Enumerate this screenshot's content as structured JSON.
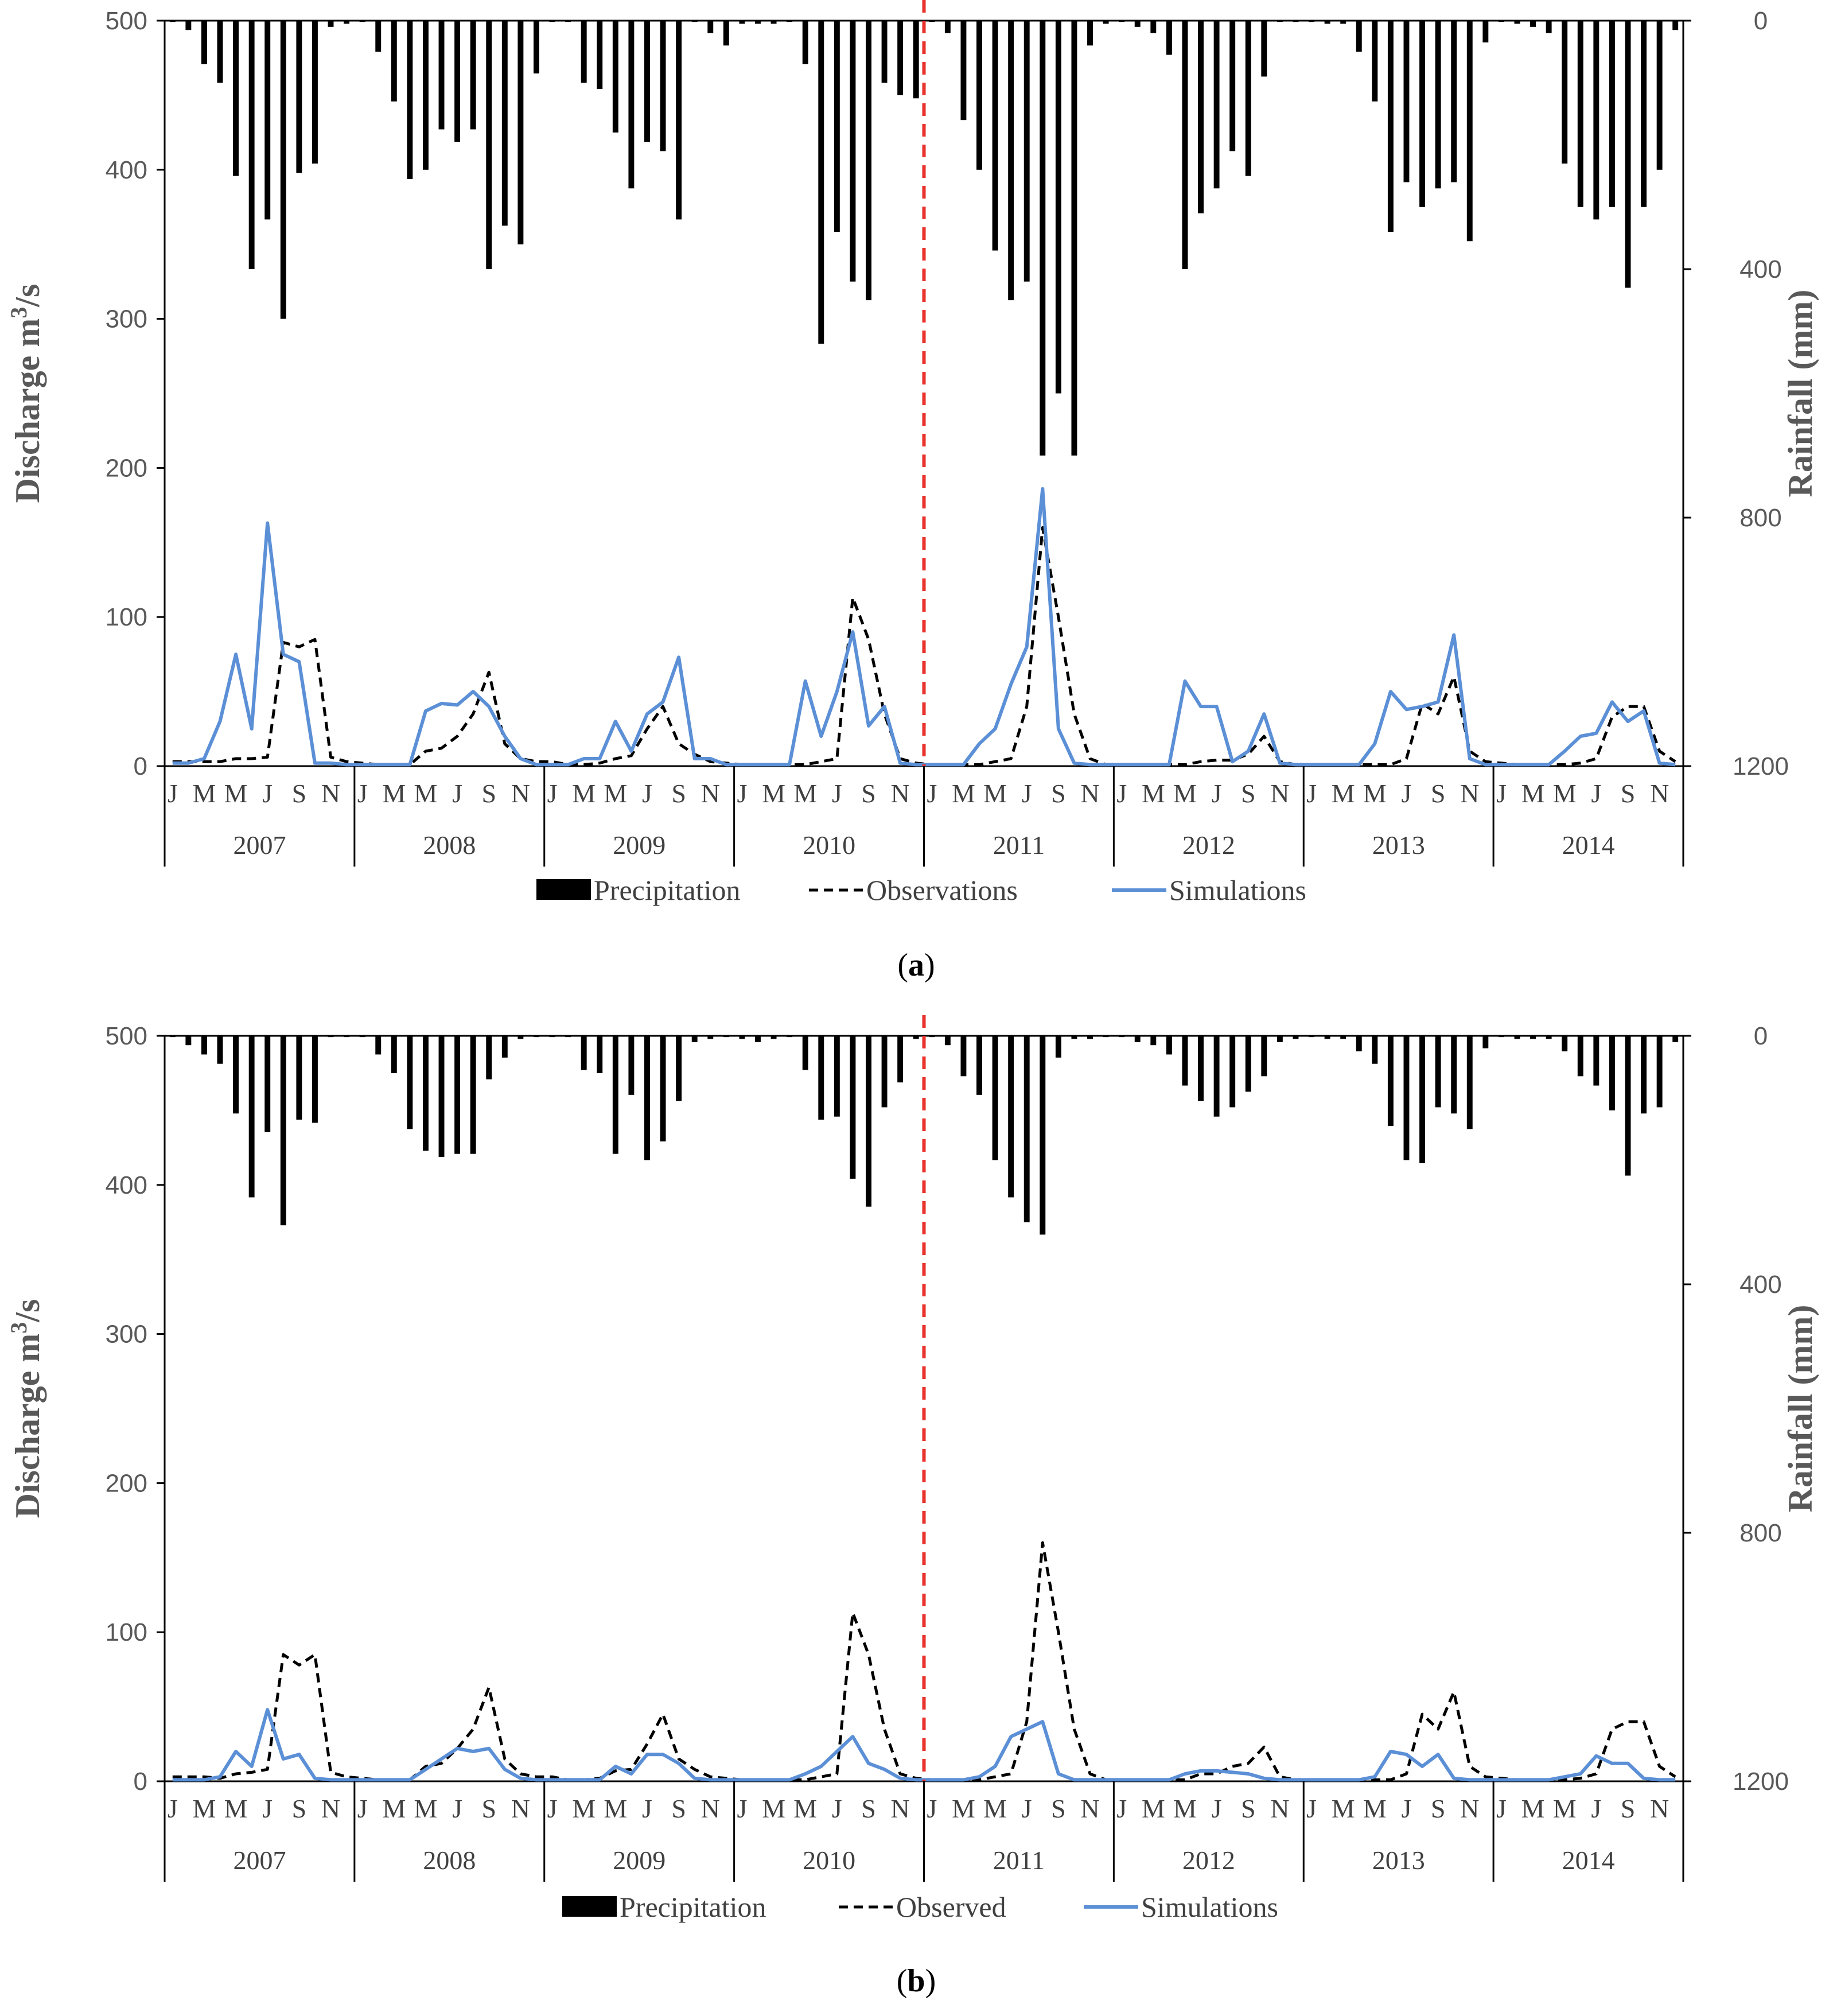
{
  "colors": {
    "precipitation": "#000000",
    "observations": "#000000",
    "simulations": "#5b8fd6",
    "divider": "#e8322b",
    "axis": "#000000",
    "tick_text": "#595959"
  },
  "chart_data": [
    {
      "id": "a",
      "type": "bar+line",
      "caption": "a",
      "ylabel_left": "Discharge m³/s",
      "ylabel_right": "Rainfall (mm)",
      "ylim_left": [
        0,
        500
      ],
      "ylim_right_inverted": [
        0,
        1200
      ],
      "left_ticks": [
        "0",
        "100",
        "200",
        "300",
        "400",
        "500"
      ],
      "right_ticks": [
        "0",
        "400",
        "800",
        "1200"
      ],
      "years": [
        "2007",
        "2008",
        "2009",
        "2010",
        "2011",
        "2012",
        "2013",
        "2014"
      ],
      "month_tick_labels": [
        "J",
        "M",
        "M",
        "J",
        "S",
        "N"
      ],
      "calibration_validation_split_after_year": "2010",
      "legend": [
        "Precipitation",
        "Observations",
        "Simulations"
      ],
      "series": [
        {
          "name": "Precipitation",
          "kind": "bar",
          "axis": "right",
          "unit": "mm",
          "values": [
            2,
            15,
            70,
            100,
            250,
            400,
            320,
            480,
            245,
            230,
            10,
            5,
            2,
            50,
            130,
            255,
            240,
            175,
            195,
            175,
            400,
            330,
            360,
            85,
            2,
            2,
            100,
            110,
            180,
            270,
            195,
            210,
            320,
            2,
            20,
            40,
            5,
            5,
            5,
            2,
            70,
            520,
            340,
            420,
            450,
            100,
            120,
            125,
            2,
            20,
            160,
            240,
            370,
            450,
            420,
            700,
            600,
            700,
            40,
            5,
            2,
            10,
            20,
            55,
            400,
            310,
            270,
            210,
            250,
            90,
            2,
            2,
            2,
            5,
            5,
            50,
            130,
            340,
            260,
            300,
            270,
            260,
            355,
            35,
            2,
            5,
            10,
            20,
            230,
            300,
            320,
            300,
            430,
            300,
            240,
            15
          ]
        },
        {
          "name": "Observations",
          "kind": "line",
          "axis": "left",
          "unit": "m3/s",
          "dash": true,
          "values": [
            3,
            3,
            3,
            3,
            5,
            5,
            6,
            83,
            80,
            85,
            6,
            3,
            2,
            1,
            1,
            1,
            10,
            12,
            20,
            35,
            63,
            15,
            5,
            3,
            3,
            1,
            1,
            2,
            5,
            7,
            25,
            40,
            15,
            8,
            3,
            2,
            1,
            1,
            1,
            1,
            1,
            3,
            5,
            113,
            85,
            35,
            5,
            2,
            1,
            1,
            1,
            1,
            3,
            5,
            40,
            160,
            100,
            35,
            5,
            1,
            1,
            1,
            1,
            1,
            1,
            3,
            4,
            4,
            8,
            20,
            3,
            1,
            1,
            1,
            1,
            1,
            1,
            1,
            5,
            42,
            35,
            60,
            10,
            3,
            2,
            1,
            1,
            1,
            1,
            2,
            5,
            33,
            40,
            40,
            10,
            3
          ]
        },
        {
          "name": "Simulations",
          "kind": "line",
          "axis": "left",
          "unit": "m3/s",
          "dash": false,
          "values": [
            2,
            2,
            5,
            30,
            75,
            25,
            163,
            75,
            70,
            2,
            2,
            1,
            1,
            1,
            1,
            1,
            37,
            42,
            41,
            50,
            40,
            20,
            5,
            1,
            1,
            1,
            5,
            5,
            30,
            10,
            35,
            43,
            73,
            5,
            5,
            1,
            1,
            1,
            1,
            1,
            57,
            20,
            50,
            90,
            27,
            40,
            2,
            1,
            1,
            1,
            1,
            15,
            25,
            55,
            80,
            186,
            25,
            2,
            1,
            1,
            1,
            1,
            1,
            1,
            57,
            40,
            40,
            3,
            10,
            35,
            2,
            1,
            1,
            1,
            1,
            1,
            15,
            50,
            38,
            40,
            43,
            88,
            5,
            1,
            1,
            1,
            1,
            1,
            10,
            20,
            22,
            43,
            30,
            37,
            2,
            1
          ]
        }
      ]
    },
    {
      "id": "b",
      "type": "bar+line",
      "caption": "b",
      "ylabel_left": "Discharge m³/s",
      "ylabel_right": "Rainfall (mm)",
      "ylim_left": [
        0,
        500
      ],
      "ylim_right_inverted": [
        0,
        1200
      ],
      "left_ticks": [
        "0",
        "100",
        "200",
        "300",
        "400",
        "500"
      ],
      "right_ticks": [
        "0",
        "400",
        "800",
        "1200"
      ],
      "years": [
        "2007",
        "2008",
        "2009",
        "2010",
        "2011",
        "2012",
        "2013",
        "2014"
      ],
      "month_tick_labels": [
        "J",
        "M",
        "M",
        "J",
        "S",
        "N"
      ],
      "calibration_validation_split_after_year": "2010",
      "legend": [
        "Precipitation",
        "Observed",
        "Simulations"
      ],
      "series": [
        {
          "name": "Precipitation",
          "kind": "bar",
          "axis": "right",
          "unit": "mm",
          "values": [
            2,
            15,
            30,
            45,
            125,
            260,
            155,
            305,
            135,
            140,
            2,
            2,
            2,
            30,
            60,
            150,
            185,
            195,
            190,
            190,
            70,
            35,
            5,
            2,
            2,
            2,
            55,
            60,
            190,
            95,
            200,
            170,
            105,
            10,
            5,
            2,
            5,
            10,
            5,
            2,
            55,
            135,
            130,
            230,
            275,
            115,
            75,
            5,
            2,
            15,
            65,
            95,
            200,
            260,
            300,
            320,
            35,
            5,
            5,
            2,
            2,
            10,
            15,
            30,
            80,
            105,
            130,
            115,
            90,
            65,
            10,
            5,
            2,
            5,
            5,
            25,
            45,
            145,
            200,
            205,
            115,
            125,
            150,
            20,
            2,
            5,
            5,
            5,
            25,
            65,
            80,
            120,
            225,
            125,
            115,
            10
          ]
        },
        {
          "name": "Observed",
          "kind": "line",
          "axis": "left",
          "unit": "m3/s",
          "dash": true,
          "values": [
            3,
            3,
            3,
            2,
            5,
            6,
            8,
            85,
            78,
            85,
            6,
            3,
            2,
            1,
            1,
            1,
            10,
            12,
            22,
            35,
            63,
            15,
            5,
            3,
            3,
            1,
            1,
            2,
            7,
            8,
            25,
            45,
            15,
            8,
            3,
            2,
            1,
            1,
            1,
            1,
            1,
            3,
            5,
            113,
            85,
            35,
            5,
            2,
            1,
            1,
            1,
            1,
            3,
            5,
            40,
            160,
            100,
            35,
            5,
            1,
            1,
            1,
            1,
            1,
            1,
            5,
            5,
            10,
            12,
            23,
            3,
            1,
            1,
            1,
            1,
            1,
            1,
            1,
            5,
            45,
            35,
            60,
            10,
            3,
            2,
            1,
            1,
            1,
            1,
            2,
            5,
            35,
            40,
            40,
            10,
            3
          ]
        },
        {
          "name": "Simulations",
          "kind": "line",
          "axis": "left",
          "unit": "m3/s",
          "dash": false,
          "values": [
            1,
            1,
            1,
            3,
            20,
            10,
            48,
            15,
            18,
            2,
            1,
            1,
            1,
            1,
            1,
            1,
            8,
            15,
            22,
            20,
            22,
            8,
            2,
            1,
            1,
            1,
            1,
            1,
            10,
            5,
            18,
            18,
            12,
            2,
            1,
            1,
            1,
            1,
            1,
            1,
            5,
            10,
            20,
            30,
            12,
            8,
            2,
            1,
            1,
            1,
            1,
            3,
            10,
            30,
            35,
            40,
            5,
            1,
            1,
            1,
            1,
            1,
            1,
            1,
            5,
            7,
            7,
            6,
            5,
            2,
            1,
            1,
            1,
            1,
            1,
            1,
            3,
            20,
            18,
            10,
            18,
            2,
            1,
            1,
            1,
            1,
            1,
            1,
            3,
            5,
            17,
            12,
            12,
            2,
            1,
            1
          ]
        }
      ]
    }
  ]
}
